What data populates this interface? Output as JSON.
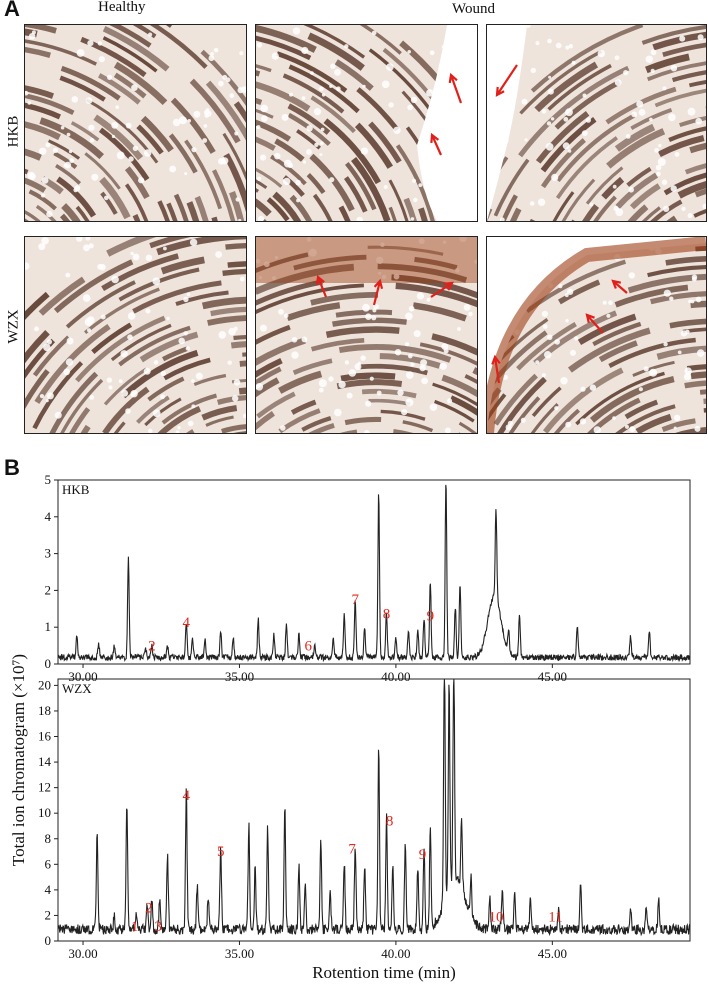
{
  "panel_a": {
    "letter": "A",
    "col_headers": {
      "healthy": "Healthy",
      "wound": "Wound"
    },
    "rows": [
      {
        "label": "HKB"
      },
      {
        "label": "WZX"
      }
    ]
  },
  "panel_b": {
    "letter": "B",
    "ylabel": "Total ion chromatogram (×10⁷)",
    "xlabel": "Rotention time (min)"
  },
  "chart_data": [
    {
      "type": "line",
      "title": "HKB",
      "xlabel": "Rotention time (min)",
      "ylabel": "Total ion chromatogram (×10⁷)",
      "xlim": [
        29.2,
        49.4
      ],
      "ylim": [
        0,
        5
      ],
      "x_ticks": [
        "30.00",
        "35.00",
        "40.00",
        "45.00"
      ],
      "x_tick_values": [
        30,
        35,
        40,
        45
      ],
      "y_ticks": [
        "0",
        "1",
        "2",
        "3",
        "4",
        "5"
      ],
      "y_tick_values": [
        0,
        1,
        2,
        3,
        4,
        5
      ],
      "baseline": 0.1,
      "peaks": [
        [
          29.8,
          0.6
        ],
        [
          30.5,
          0.35
        ],
        [
          31.0,
          0.3
        ],
        [
          31.45,
          2.7
        ],
        [
          32.0,
          0.25
        ],
        [
          32.2,
          0.3
        ],
        [
          32.7,
          0.3
        ],
        [
          33.3,
          0.95
        ],
        [
          33.5,
          0.5
        ],
        [
          33.9,
          0.45
        ],
        [
          34.4,
          0.7
        ],
        [
          34.8,
          0.5
        ],
        [
          35.6,
          1.05
        ],
        [
          36.1,
          0.6
        ],
        [
          36.5,
          0.9
        ],
        [
          36.9,
          0.6
        ],
        [
          37.4,
          0.3
        ],
        [
          38.0,
          0.5
        ],
        [
          38.35,
          1.15
        ],
        [
          38.7,
          1.55
        ],
        [
          39.0,
          0.85
        ],
        [
          39.45,
          4.5
        ],
        [
          39.7,
          1.25
        ],
        [
          40.0,
          0.55
        ],
        [
          40.4,
          0.75
        ],
        [
          40.7,
          0.8
        ],
        [
          40.9,
          1.05
        ],
        [
          41.1,
          2.05
        ],
        [
          41.6,
          4.9
        ],
        [
          41.9,
          1.4
        ],
        [
          42.05,
          2.05
        ],
        [
          43.2,
          2.45
        ],
        [
          43.6,
          0.6
        ],
        [
          43.95,
          1.15
        ],
        [
          45.8,
          0.85
        ],
        [
          47.5,
          0.55
        ],
        [
          48.1,
          0.75
        ]
      ],
      "broad_peaks": [
        [
          43.15,
          1.65,
          0.3
        ]
      ],
      "annotations": [
        {
          "label": "2",
          "x": 32.2,
          "y": 0.28
        },
        {
          "label": "4",
          "x": 33.3,
          "y": 0.93
        },
        {
          "label": "6",
          "x": 37.2,
          "y": 0.28
        },
        {
          "label": "7",
          "x": 38.7,
          "y": 1.55
        },
        {
          "label": "8",
          "x": 39.7,
          "y": 1.15
        },
        {
          "label": "9",
          "x": 41.1,
          "y": 1.1
        }
      ],
      "annotation_color": "#e8261b"
    },
    {
      "type": "line",
      "title": "WZX",
      "xlabel": "Rotention time (min)",
      "ylabel": "Total ion chromatogram (×10⁷)",
      "xlim": [
        29.2,
        49.4
      ],
      "ylim": [
        0,
        20.5
      ],
      "x_ticks": [
        "30.00",
        "35.00",
        "40.00",
        "45.00"
      ],
      "x_tick_values": [
        30,
        35,
        40,
        45
      ],
      "y_ticks": [
        "0",
        "2",
        "4",
        "6",
        "8",
        "10",
        "12",
        "14",
        "16",
        "18",
        "20"
      ],
      "y_tick_values": [
        0,
        2,
        4,
        6,
        8,
        10,
        12,
        14,
        16,
        18,
        20
      ],
      "baseline": 0.5,
      "peaks": [
        [
          30.45,
          7.6
        ],
        [
          31.0,
          1.0
        ],
        [
          31.4,
          9.9
        ],
        [
          31.7,
          1.0
        ],
        [
          32.05,
          2.0
        ],
        [
          32.2,
          2.5
        ],
        [
          32.45,
          2.2
        ],
        [
          32.7,
          5.8
        ],
        [
          33.3,
          10.8
        ],
        [
          33.65,
          3.4
        ],
        [
          34.0,
          2.5
        ],
        [
          34.4,
          6.4
        ],
        [
          35.3,
          8.3
        ],
        [
          35.5,
          4.8
        ],
        [
          35.9,
          8.0
        ],
        [
          36.45,
          9.8
        ],
        [
          36.9,
          5.0
        ],
        [
          37.1,
          3.5
        ],
        [
          37.6,
          7.2
        ],
        [
          37.9,
          3.0
        ],
        [
          38.35,
          5.2
        ],
        [
          38.7,
          6.6
        ],
        [
          39.0,
          5.0
        ],
        [
          39.45,
          14.3
        ],
        [
          39.7,
          8.8
        ],
        [
          39.9,
          5.0
        ],
        [
          40.3,
          6.5
        ],
        [
          40.7,
          5.0
        ],
        [
          40.9,
          6.2
        ],
        [
          41.1,
          7.8
        ],
        [
          41.55,
          19.3
        ],
        [
          41.7,
          15.8
        ],
        [
          41.85,
          16.9
        ],
        [
          42.1,
          5.5
        ],
        [
          42.4,
          3.0
        ],
        [
          43.0,
          2.6
        ],
        [
          43.4,
          3.3
        ],
        [
          43.8,
          2.9
        ],
        [
          44.3,
          2.3
        ],
        [
          45.2,
          1.6
        ],
        [
          45.9,
          3.8
        ],
        [
          47.5,
          1.5
        ],
        [
          48.0,
          1.5
        ],
        [
          48.4,
          2.2
        ]
      ],
      "broad_peaks": [
        [
          41.9,
          4.0,
          0.45
        ]
      ],
      "annotations": [
        {
          "label": "1",
          "x": 31.65,
          "y": 0.55
        },
        {
          "label": "2",
          "x": 32.1,
          "y": 2.0
        },
        {
          "label": "3",
          "x": 32.4,
          "y": 0.55
        },
        {
          "label": "4",
          "x": 33.3,
          "y": 10.8
        },
        {
          "label": "5",
          "x": 34.4,
          "y": 6.4
        },
        {
          "label": "7",
          "x": 38.6,
          "y": 6.6
        },
        {
          "label": "8",
          "x": 39.8,
          "y": 8.8
        },
        {
          "label": "9",
          "x": 40.85,
          "y": 6.2
        },
        {
          "label": "10",
          "x": 43.2,
          "y": 1.3
        },
        {
          "label": "11",
          "x": 45.1,
          "y": 1.3
        }
      ],
      "annotation_color": "#e8261b"
    }
  ],
  "colors": {
    "trace": "#222222",
    "annotation": "#e8261b",
    "tissue": "#5a3a2c",
    "wound_stain": "#9c3d14",
    "arrow": "#e0201a"
  }
}
